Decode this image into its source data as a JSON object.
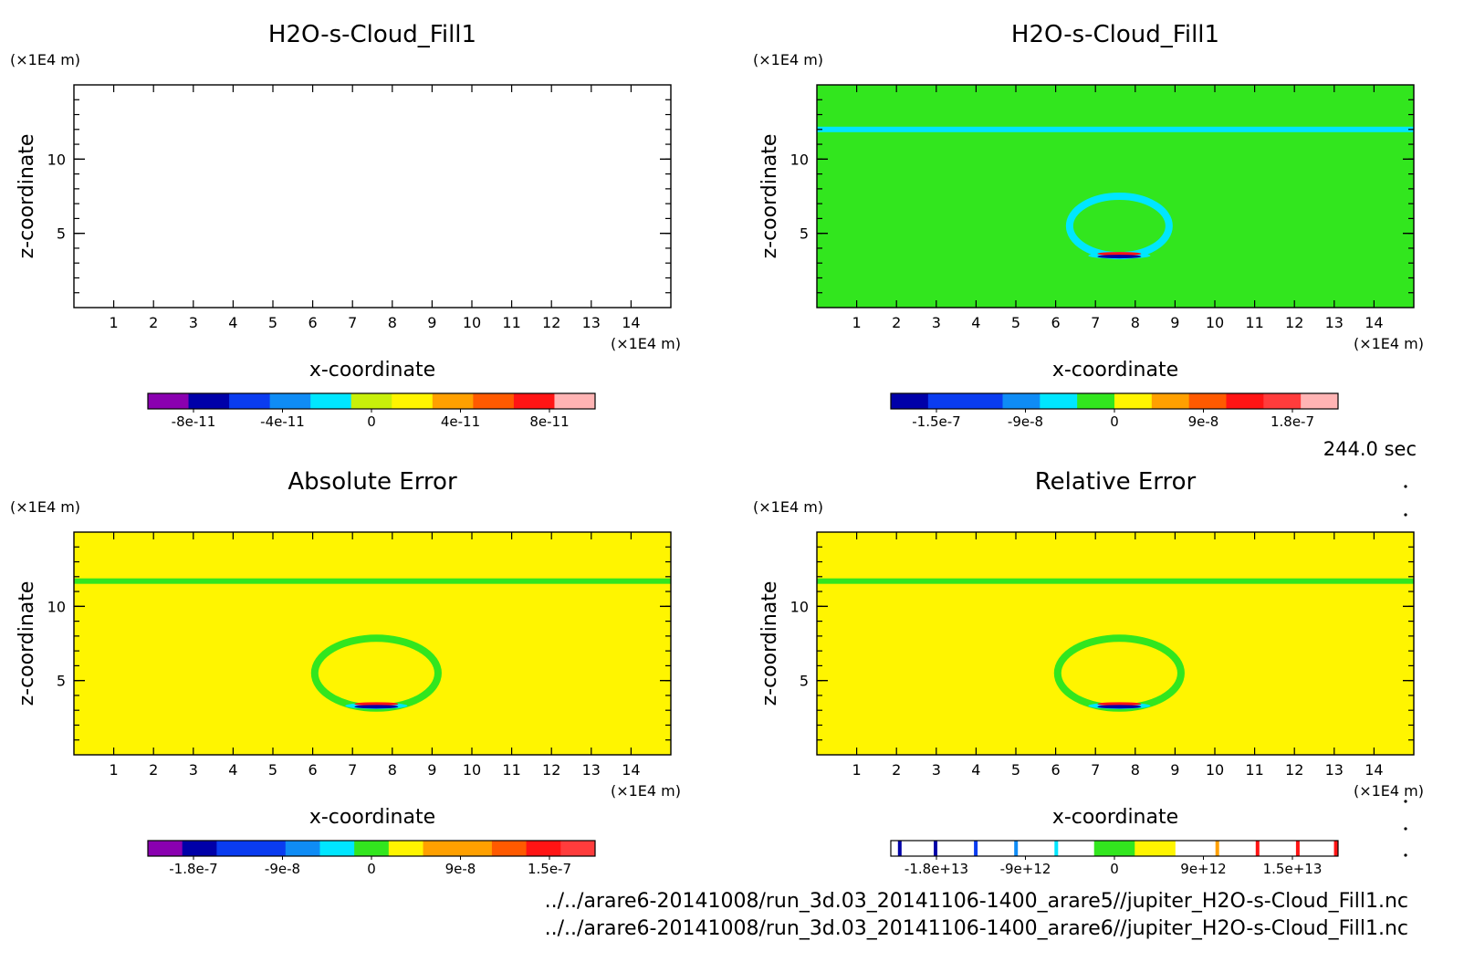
{
  "stamp": "244.0 sec",
  "file_paths": [
    "../../arare6-20141008/run_3d.03_20141106-1400_arare5//jupiter_H2O-s-Cloud_Fill1.nc",
    "../../arare6-20141008/run_3d.03_20141106-1400_arare6//jupiter_H2O-s-Cloud_Fill1.nc"
  ],
  "colors": {
    "purple": "#8a00b0",
    "navy": "#0000a8",
    "blue": "#0a3cf0",
    "midblue": "#0f8cf5",
    "cyan": "#00e6ff",
    "green": "#32e61e",
    "yellowgreen": "#c8f00a",
    "yellow": "#fff500",
    "orange": "#ffa000",
    "redorange": "#ff5a00",
    "red": "#ff1414",
    "crimson": "#ff3c3c",
    "pink": "#ffb4b4",
    "white": "#ffffff"
  },
  "chart_data": [
    {
      "type": "heatmap",
      "title": "H2O-s-Cloud_Fill1",
      "xlabel": "x-coordinate",
      "ylabel": "z-coordinate",
      "xunit": "(×1E4 m)",
      "yunit": "(×1E4 m)",
      "xlim": [
        0,
        15
      ],
      "ylim": [
        0,
        15
      ],
      "xticks": [
        "1",
        "2",
        "3",
        "4",
        "5",
        "6",
        "7",
        "8",
        "9",
        "10",
        "11",
        "12",
        "13",
        "14"
      ],
      "yticks": [
        "5",
        "10"
      ],
      "background": "white",
      "features": [],
      "colorbar": {
        "colors": [
          "purple",
          "navy",
          "blue",
          "midblue",
          "cyan",
          "yellowgreen",
          "yellow",
          "orange",
          "redorange",
          "red",
          "pink"
        ],
        "labels": [
          "-8e-11",
          "-4e-11",
          "0",
          "4e-11",
          "8e-11"
        ]
      }
    },
    {
      "type": "heatmap",
      "title": "H2O-s-Cloud_Fill1",
      "xlabel": "x-coordinate",
      "ylabel": "z-coordinate",
      "xunit": "(×1E4 m)",
      "yunit": "(×1E4 m)",
      "xlim": [
        0,
        15
      ],
      "ylim": [
        0,
        15
      ],
      "xticks": [
        "1",
        "2",
        "3",
        "4",
        "5",
        "6",
        "7",
        "8",
        "9",
        "10",
        "11",
        "12",
        "13",
        "14"
      ],
      "yticks": [
        "5",
        "10"
      ],
      "background": "green",
      "line_color": "cyan",
      "line_z": 12.0,
      "ring": {
        "cx": 7.6,
        "cz": 5.5,
        "rx": 1.25,
        "rz": 2.0,
        "color": "cyan"
      },
      "blob_z": 3.5,
      "colorbar": {
        "colors": [
          "navy",
          "blue",
          "blue",
          "midblue",
          "cyan",
          "green",
          "yellow",
          "orange",
          "redorange",
          "red",
          "crimson",
          "pink"
        ],
        "labels": [
          "-1.5e-7",
          "-9e-8",
          "0",
          "9e-8",
          "1.8e-7"
        ]
      }
    },
    {
      "type": "heatmap",
      "title": "Absolute Error",
      "xlabel": "x-coordinate",
      "ylabel": "z-coordinate",
      "xunit": "(×1E4 m)",
      "yunit": "(×1E4 m)",
      "xlim": [
        0,
        15
      ],
      "ylim": [
        0,
        15
      ],
      "xticks": [
        "1",
        "2",
        "3",
        "4",
        "5",
        "6",
        "7",
        "8",
        "9",
        "10",
        "11",
        "12",
        "13",
        "14"
      ],
      "yticks": [
        "5",
        "10"
      ],
      "background": "yellow",
      "line_color": "green",
      "line_z": 11.7,
      "ring": {
        "cx": 7.6,
        "cz": 5.5,
        "rx": 1.55,
        "rz": 2.35,
        "color": "green"
      },
      "blob_z": 3.3,
      "colorbar": {
        "colors": [
          "purple",
          "navy",
          "blue",
          "blue",
          "midblue",
          "cyan",
          "green",
          "yellow",
          "orange",
          "orange",
          "redorange",
          "red",
          "crimson"
        ],
        "labels": [
          "-1.8e-7",
          "-9e-8",
          "0",
          "9e-8",
          "1.5e-7"
        ]
      }
    },
    {
      "type": "heatmap",
      "title": "Relative Error",
      "xlabel": "x-coordinate",
      "ylabel": "z-coordinate",
      "xunit": "(×1E4 m)",
      "yunit": "(×1E4 m)",
      "xlim": [
        0,
        15
      ],
      "ylim": [
        0,
        15
      ],
      "xticks": [
        "1",
        "2",
        "3",
        "4",
        "5",
        "6",
        "7",
        "8",
        "9",
        "10",
        "11",
        "12",
        "13",
        "14"
      ],
      "yticks": [
        "5",
        "10"
      ],
      "background": "yellow",
      "line_color": "green",
      "line_z": 11.7,
      "ring": {
        "cx": 7.6,
        "cz": 5.5,
        "rx": 1.55,
        "rz": 2.35,
        "color": "green"
      },
      "blob_z": 3.3,
      "colorbar": {
        "colors": [
          "white",
          "white",
          "white",
          "white",
          "white",
          "green",
          "yellow",
          "white",
          "white",
          "white",
          "white"
        ],
        "stripes": [
          "navy",
          "navy",
          "blue",
          "midblue",
          "cyan",
          "orange",
          "red",
          "red",
          "red"
        ],
        "labels": [
          "-1.8e+13",
          "-9e+12",
          "0",
          "9e+12",
          "1.5e+13"
        ]
      }
    }
  ]
}
